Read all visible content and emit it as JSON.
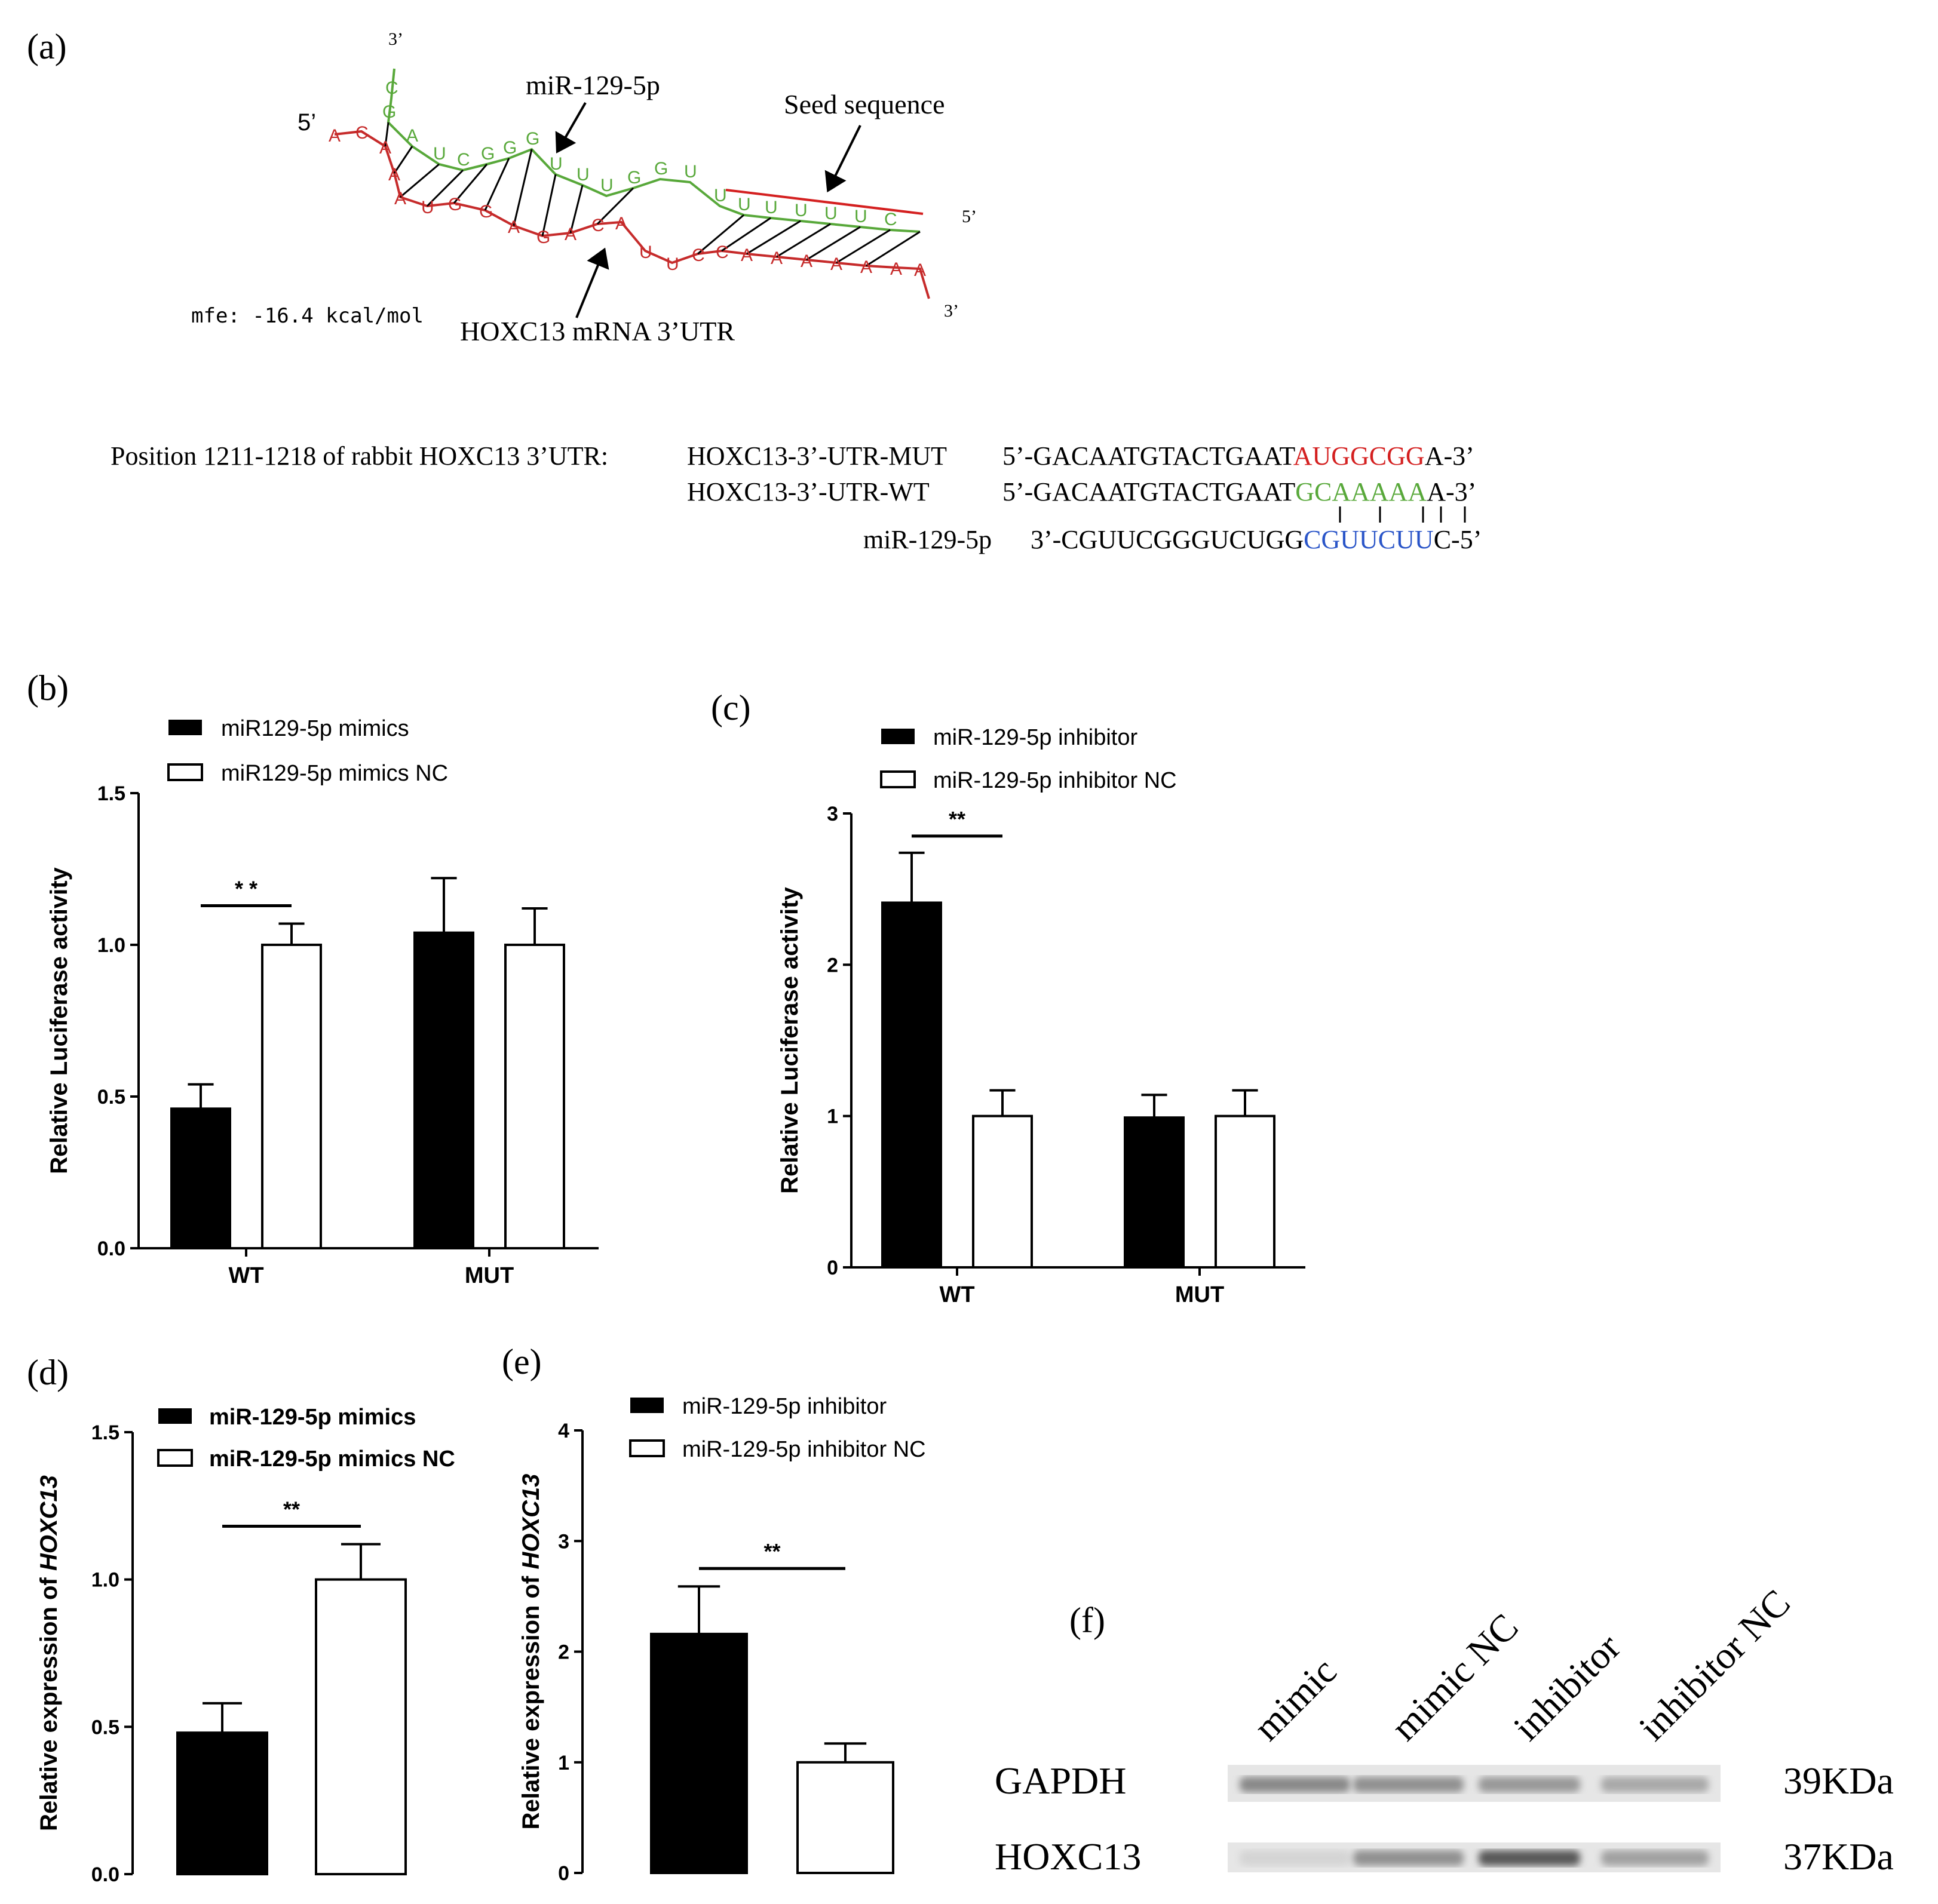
{
  "colors": {
    "mir_strand": "#58a83a",
    "mrna_strand": "#c62b2b",
    "mut_seed": "#d42020",
    "wt_seed": "#58a83a",
    "mir_seed": "#2a55c8",
    "bar_filled": "#000000",
    "bar_open": "#ffffff"
  },
  "panel_a": {
    "label": "(a)",
    "end_5": "5’",
    "end_3_top": "3’",
    "end_5_right": "5’",
    "end_3_right": "3’",
    "mirna_label": "miR-129-5p",
    "seed_label": "Seed sequence",
    "mrna_label": "HOXC13 mRNA 3’UTR",
    "mfe": "mfe: -16.4 kcal/mol",
    "mir_bases": [
      "C",
      "G",
      "A",
      "U",
      "C",
      "G",
      "G",
      "G",
      "U",
      "U",
      "U",
      "G",
      "G",
      "U",
      "U",
      "U",
      "U",
      "U",
      "U",
      "U",
      "C"
    ],
    "mrna_bases": [
      "A",
      "C",
      "A",
      "A",
      "A",
      "U",
      "G",
      "G",
      "A",
      "G",
      "A",
      "C",
      "A",
      "U",
      "U",
      "C",
      "C",
      "A",
      "A",
      "A",
      "A",
      "A",
      "A",
      "A"
    ],
    "position_label": "Position 1211-1218 of rabbit HOXC13 3’UTR:",
    "mut_name": "HOXC13-3’-UTR-MUT",
    "wt_name": "HOXC13-3’-UTR-WT",
    "mir_name": "miR-129-5p",
    "mut_prefix": "5’-GACAATGTACTGAAT",
    "mut_seed": "AUGGCGG",
    "mut_suffix": "A-3’",
    "wt_prefix": "5’-GACAATGTACTGAAT",
    "wt_seed": "GCAAAAA",
    "wt_suffix": "A-3’",
    "mir_prefix": "3’-CGUUCGGGUCUGG",
    "mir_seed": "CGUUCUU",
    "mir_suffix": "C-5’"
  },
  "chart_data": [
    {
      "panel": "(b)",
      "type": "bar",
      "categories": [
        "WT",
        "MUT"
      ],
      "series": [
        {
          "name": "miR129-5p mimics",
          "values": [
            0.46,
            1.04
          ],
          "errors": [
            0.08,
            0.18
          ]
        },
        {
          "name": "miR129-5p mimics NC",
          "values": [
            1.0,
            1.0
          ],
          "errors": [
            0.07,
            0.12
          ]
        }
      ],
      "ylabel": "Relative Luciferase activity",
      "ylim": [
        0,
        1.5
      ],
      "yticks": [
        "0.0",
        "0.5",
        "1.0",
        "1.5"
      ],
      "significance": "* *"
    },
    {
      "panel": "(c)",
      "type": "bar",
      "categories": [
        "WT",
        "MUT"
      ],
      "series": [
        {
          "name": "miR-129-5p inhibitor",
          "values": [
            2.41,
            0.99
          ],
          "errors": [
            0.33,
            0.15
          ]
        },
        {
          "name": "miR-129-5p inhibitor NC",
          "values": [
            1.0,
            1.0
          ],
          "errors": [
            0.17,
            0.17
          ]
        }
      ],
      "ylabel": "Relative Luciferase activity",
      "ylim": [
        0,
        3
      ],
      "yticks": [
        "0",
        "1",
        "2",
        "3"
      ],
      "significance": "**"
    },
    {
      "panel": "(d)",
      "type": "bar",
      "categories": [
        ""
      ],
      "series": [
        {
          "name": "miR-129-5p mimics",
          "values": [
            0.48
          ],
          "errors": [
            0.1
          ]
        },
        {
          "name": "miR-129-5p mimics NC",
          "values": [
            1.0
          ],
          "errors": [
            0.12
          ]
        }
      ],
      "ylabel_prefix": "Relative expression of ",
      "ylabel_gene": "HOXC13",
      "ylim": [
        0,
        1.5
      ],
      "yticks": [
        "0.0",
        "0.5",
        "1.0",
        "1.5"
      ],
      "significance": "**"
    },
    {
      "panel": "(e)",
      "type": "bar",
      "categories": [
        ""
      ],
      "series": [
        {
          "name": "miR-129-5p inhibitor",
          "values": [
            2.16
          ],
          "errors": [
            0.43
          ]
        },
        {
          "name": "miR-129-5p inhibitor NC",
          "values": [
            1.0
          ],
          "errors": [
            0.17
          ]
        }
      ],
      "ylabel_prefix": "Relative expression of ",
      "ylabel_gene": "HOXC13",
      "ylim": [
        0,
        4
      ],
      "yticks": [
        "0",
        "1",
        "2",
        "3",
        "4"
      ],
      "significance": "**"
    }
  ],
  "panel_f": {
    "label": "(f)",
    "lanes": [
      "mimic",
      "mimic NC",
      "inhibitor",
      "inhibitor NC"
    ],
    "rows": [
      {
        "name": "GAPDH",
        "size": "39KDa",
        "intensity": [
          0.55,
          0.5,
          0.45,
          0.35
        ]
      },
      {
        "name": "HOXC13",
        "size": "37KDa",
        "intensity": [
          0.08,
          0.5,
          0.85,
          0.4
        ]
      }
    ]
  }
}
